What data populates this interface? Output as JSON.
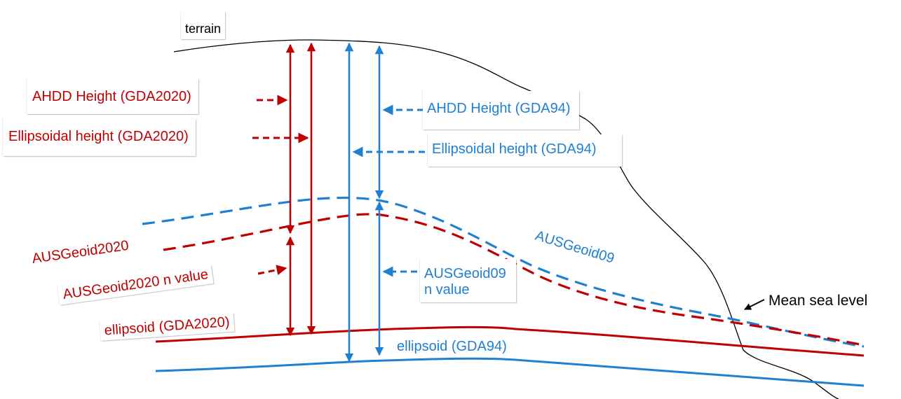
{
  "colors": {
    "gda2020": "#c00000",
    "gda94": "#1f7fd1",
    "terrain": "#000000"
  },
  "labels": {
    "terrain": "terrain",
    "ahdd_height_gda2020": "AHDD Height (GDA2020)",
    "ellipsoidal_height_gda2020": "Ellipsoidal height (GDA2020)",
    "ahdd_height_gda94": "AHDD Height (GDA94)",
    "ellipsoidal_height_gda94": "Ellipsoidal height (GDA94)",
    "ausgeoid2020": "AUSGeoid2020",
    "ausgeoid2020_n_value": "AUSGeoid2020 n value",
    "ellipsoid_gda2020": "ellipsoid (GDA2020)",
    "ausgeoid09": "AUSGeoid09",
    "ausgeoid09_n_value_line1": "AUSGeoid09",
    "ausgeoid09_n_value_line2": "n value",
    "ellipsoid_gda94": "ellipsoid (GDA94)",
    "mean_sea_level": "Mean sea level"
  }
}
